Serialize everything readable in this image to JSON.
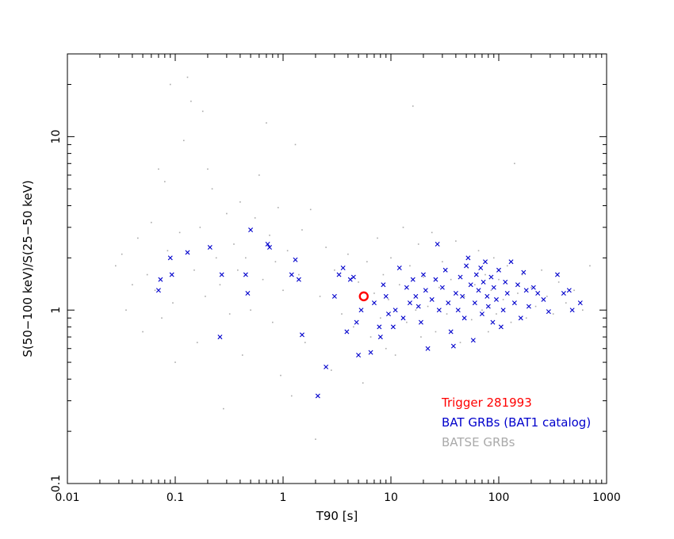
{
  "colors": {
    "background": "#ffffff",
    "axes": "#000000",
    "trigger": "#ff0000",
    "bat": "#0000cc",
    "batse": "#aaaaaa"
  },
  "chart_data": {
    "type": "scatter",
    "title": "",
    "xlabel": "T90 [s]",
    "ylabel": "S(50−100 keV)/S(25−50 keV)",
    "xscale": "log",
    "yscale": "log",
    "xlim": [
      0.01,
      1000
    ],
    "ylim": [
      0.1,
      30
    ],
    "grid": false,
    "legend_placement": "bottom-right",
    "x_tick_labels": [
      {
        "value": 0.01,
        "label": "0.01"
      },
      {
        "value": 0.1,
        "label": "0.1"
      },
      {
        "value": 1,
        "label": "1"
      },
      {
        "value": 10,
        "label": "10"
      },
      {
        "value": 100,
        "label": "100"
      },
      {
        "value": 1000,
        "label": "1000"
      }
    ],
    "y_tick_labels": [
      {
        "value": 0.1,
        "label": "0.1"
      },
      {
        "value": 1,
        "label": "1"
      },
      {
        "value": 10,
        "label": "10"
      }
    ],
    "series": [
      {
        "name": "Trigger 281993",
        "marker": "circle",
        "color": "#ff0000",
        "points": [
          [
            5.6,
            1.2
          ]
        ]
      },
      {
        "name": "BAT GRBs (BAT1 catalog)",
        "marker": "x",
        "color": "#0000cc",
        "points": [
          [
            0.07,
            1.3
          ],
          [
            0.073,
            1.5
          ],
          [
            0.09,
            2.0
          ],
          [
            0.093,
            1.6
          ],
          [
            0.13,
            2.15
          ],
          [
            0.21,
            2.3
          ],
          [
            0.26,
            0.7
          ],
          [
            0.27,
            1.6
          ],
          [
            0.45,
            1.6
          ],
          [
            0.47,
            1.25
          ],
          [
            0.5,
            2.9
          ],
          [
            0.72,
            2.4
          ],
          [
            0.75,
            2.3
          ],
          [
            1.2,
            1.6
          ],
          [
            1.3,
            1.95
          ],
          [
            1.4,
            1.5
          ],
          [
            1.5,
            0.72
          ],
          [
            2.1,
            0.32
          ],
          [
            2.5,
            0.47
          ],
          [
            3.0,
            1.2
          ],
          [
            3.3,
            1.6
          ],
          [
            3.6,
            1.75
          ],
          [
            3.9,
            0.75
          ],
          [
            4.2,
            1.5
          ],
          [
            4.5,
            1.55
          ],
          [
            4.8,
            0.85
          ],
          [
            5.0,
            0.55
          ],
          [
            5.3,
            1.0
          ],
          [
            6.5,
            0.57
          ],
          [
            7.0,
            1.1
          ],
          [
            7.8,
            0.8
          ],
          [
            8.0,
            0.7
          ],
          [
            8.5,
            1.4
          ],
          [
            9.0,
            1.2
          ],
          [
            9.5,
            0.95
          ],
          [
            10.5,
            0.8
          ],
          [
            11.0,
            1.0
          ],
          [
            12.0,
            1.75
          ],
          [
            13.0,
            0.9
          ],
          [
            14.0,
            1.35
          ],
          [
            15.0,
            1.1
          ],
          [
            16.0,
            1.5
          ],
          [
            17.0,
            1.2
          ],
          [
            18.0,
            1.05
          ],
          [
            19.0,
            0.85
          ],
          [
            20.0,
            1.6
          ],
          [
            21.0,
            1.3
          ],
          [
            22.0,
            0.6
          ],
          [
            24.0,
            1.15
          ],
          [
            26.0,
            1.5
          ],
          [
            27.0,
            2.4
          ],
          [
            28.0,
            1.0
          ],
          [
            30.0,
            1.35
          ],
          [
            32.0,
            1.7
          ],
          [
            34.0,
            1.1
          ],
          [
            36.0,
            0.75
          ],
          [
            38.0,
            0.62
          ],
          [
            40.0,
            1.25
          ],
          [
            42.0,
            1.0
          ],
          [
            44.0,
            1.55
          ],
          [
            46.0,
            1.2
          ],
          [
            48.0,
            0.9
          ],
          [
            50.0,
            1.8
          ],
          [
            52.0,
            2.0
          ],
          [
            55.0,
            1.4
          ],
          [
            58.0,
            0.67
          ],
          [
            60.0,
            1.1
          ],
          [
            62.0,
            1.6
          ],
          [
            65.0,
            1.3
          ],
          [
            68.0,
            1.75
          ],
          [
            70.0,
            0.95
          ],
          [
            72.0,
            1.45
          ],
          [
            75.0,
            1.9
          ],
          [
            78.0,
            1.2
          ],
          [
            80.0,
            1.05
          ],
          [
            85.0,
            1.55
          ],
          [
            88.0,
            0.85
          ],
          [
            90.0,
            1.35
          ],
          [
            95.0,
            1.15
          ],
          [
            100.0,
            1.7
          ],
          [
            105.0,
            0.8
          ],
          [
            110.0,
            1.0
          ],
          [
            115.0,
            1.45
          ],
          [
            120.0,
            1.25
          ],
          [
            130.0,
            1.9
          ],
          [
            140.0,
            1.1
          ],
          [
            150.0,
            1.4
          ],
          [
            160.0,
            0.9
          ],
          [
            170.0,
            1.65
          ],
          [
            180.0,
            1.3
          ],
          [
            190.0,
            1.05
          ],
          [
            210.0,
            1.35
          ],
          [
            230.0,
            1.25
          ],
          [
            260.0,
            1.15
          ],
          [
            290.0,
            0.98
          ],
          [
            350.0,
            1.6
          ],
          [
            400.0,
            1.25
          ],
          [
            450.0,
            1.3
          ],
          [
            480.0,
            1.0
          ],
          [
            570.0,
            1.1
          ]
        ]
      },
      {
        "name": "BATSE GRBs",
        "marker": "dot",
        "color": "#aaaaaa",
        "points": [
          [
            0.028,
            1.8
          ],
          [
            0.032,
            2.1
          ],
          [
            0.035,
            1.0
          ],
          [
            0.04,
            1.4
          ],
          [
            0.045,
            2.6
          ],
          [
            0.05,
            0.75
          ],
          [
            0.055,
            1.6
          ],
          [
            0.06,
            3.2
          ],
          [
            0.065,
            1.3
          ],
          [
            0.07,
            6.5
          ],
          [
            0.075,
            0.9
          ],
          [
            0.08,
            5.5
          ],
          [
            0.085,
            2.2
          ],
          [
            0.09,
            20.0
          ],
          [
            0.095,
            1.1
          ],
          [
            0.1,
            0.5
          ],
          [
            0.11,
            2.8
          ],
          [
            0.12,
            9.5
          ],
          [
            0.13,
            22.0
          ],
          [
            0.14,
            16.0
          ],
          [
            0.15,
            1.7
          ],
          [
            0.16,
            0.65
          ],
          [
            0.17,
            3.0
          ],
          [
            0.18,
            14.0
          ],
          [
            0.19,
            1.2
          ],
          [
            0.2,
            6.5
          ],
          [
            0.22,
            5.0
          ],
          [
            0.24,
            2.0
          ],
          [
            0.26,
            1.4
          ],
          [
            0.28,
            0.27
          ],
          [
            0.3,
            3.6
          ],
          [
            0.32,
            0.95
          ],
          [
            0.35,
            2.4
          ],
          [
            0.38,
            1.7
          ],
          [
            0.4,
            4.2
          ],
          [
            0.42,
            0.55
          ],
          [
            0.45,
            2.0
          ],
          [
            0.5,
            1.0
          ],
          [
            0.55,
            3.4
          ],
          [
            0.6,
            6.0
          ],
          [
            0.65,
            1.5
          ],
          [
            0.7,
            12.0
          ],
          [
            0.75,
            2.7
          ],
          [
            0.8,
            0.85
          ],
          [
            0.85,
            1.9
          ],
          [
            0.9,
            3.9
          ],
          [
            0.95,
            0.42
          ],
          [
            1.0,
            1.3
          ],
          [
            1.1,
            2.2
          ],
          [
            1.2,
            0.32
          ],
          [
            1.3,
            9.0
          ],
          [
            1.4,
            1.6
          ],
          [
            1.5,
            2.9
          ],
          [
            1.6,
            0.65
          ],
          [
            1.8,
            3.8
          ],
          [
            2.0,
            0.18
          ],
          [
            2.2,
            1.2
          ],
          [
            2.5,
            2.3
          ],
          [
            2.8,
            0.45
          ],
          [
            3.0,
            1.7
          ],
          [
            3.5,
            0.95
          ],
          [
            4.0,
            2.1
          ],
          [
            4.5,
            0.8
          ],
          [
            5.0,
            1.45
          ],
          [
            5.5,
            0.38
          ],
          [
            6.0,
            1.9
          ],
          [
            6.5,
            0.7
          ],
          [
            7.0,
            1.25
          ],
          [
            7.5,
            2.6
          ],
          [
            8.0,
            0.9
          ],
          [
            8.5,
            1.6
          ],
          [
            9.0,
            0.6
          ],
          [
            9.5,
            1.15
          ],
          [
            10.0,
            2.0
          ],
          [
            11.0,
            0.55
          ],
          [
            12.0,
            1.4
          ],
          [
            13.0,
            3.0
          ],
          [
            14.0,
            0.85
          ],
          [
            15.0,
            1.8
          ],
          [
            16.0,
            15.0
          ],
          [
            17.0,
            1.0
          ],
          [
            18.0,
            2.4
          ],
          [
            19.0,
            0.7
          ],
          [
            20.0,
            1.55
          ],
          [
            22.0,
            1.05
          ],
          [
            24.0,
            2.8
          ],
          [
            26.0,
            0.75
          ],
          [
            28.0,
            1.35
          ],
          [
            30.0,
            1.9
          ],
          [
            33.0,
            0.95
          ],
          [
            36.0,
            1.5
          ],
          [
            40.0,
            2.5
          ],
          [
            44.0,
            0.65
          ],
          [
            48.0,
            1.2
          ],
          [
            52.0,
            1.75
          ],
          [
            56.0,
            0.88
          ],
          [
            60.0,
            1.4
          ],
          [
            65.0,
            2.2
          ],
          [
            70.0,
            1.0
          ],
          [
            75.0,
            1.6
          ],
          [
            80.0,
            0.75
          ],
          [
            85.0,
            1.3
          ],
          [
            90.0,
            2.0
          ],
          [
            95.0,
            0.95
          ],
          [
            100.0,
            1.5
          ],
          [
            110.0,
            1.15
          ],
          [
            120.0,
            1.8
          ],
          [
            130.0,
            0.85
          ],
          [
            140.0,
            7.0
          ],
          [
            150.0,
            1.25
          ],
          [
            165.0,
            1.6
          ],
          [
            180.0,
            0.9
          ],
          [
            200.0,
            1.35
          ],
          [
            220.0,
            1.05
          ],
          [
            250.0,
            1.7
          ],
          [
            280.0,
            1.2
          ],
          [
            320.0,
            0.95
          ],
          [
            360.0,
            1.45
          ],
          [
            420.0,
            1.1
          ],
          [
            500.0,
            1.3
          ],
          [
            600.0,
            1.0
          ],
          [
            700.0,
            1.8
          ]
        ]
      }
    ]
  }
}
